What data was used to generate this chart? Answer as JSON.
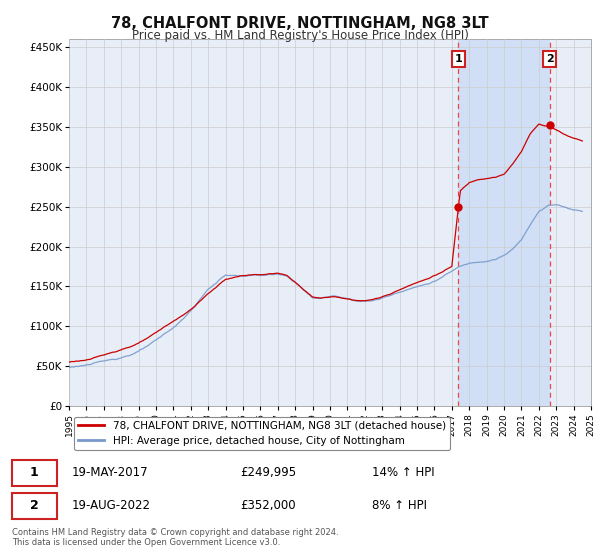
{
  "title": "78, CHALFONT DRIVE, NOTTINGHAM, NG8 3LT",
  "subtitle": "Price paid vs. HM Land Registry's House Price Index (HPI)",
  "ylim": [
    0,
    460000
  ],
  "yticks": [
    0,
    50000,
    100000,
    150000,
    200000,
    250000,
    300000,
    350000,
    400000,
    450000
  ],
  "ytick_labels": [
    "£0",
    "£50K",
    "£100K",
    "£150K",
    "£200K",
    "£250K",
    "£300K",
    "£350K",
    "£400K",
    "£450K"
  ],
  "bg_color": "#ffffff",
  "plot_bg_color": "#e8eef8",
  "shade_color": "#d0dff5",
  "grid_color": "#cccccc",
  "hpi_color": "#7799cc",
  "price_color": "#cc0000",
  "vline_color": "#ee4444",
  "annotation_box_color": "#cc2222",
  "legend_label_price": "78, CHALFONT DRIVE, NOTTINGHAM, NG8 3LT (detached house)",
  "legend_label_hpi": "HPI: Average price, detached house, City of Nottingham",
  "sale1_date": "19-MAY-2017",
  "sale1_price": "£249,995",
  "sale1_hpi": "14% ↑ HPI",
  "sale2_date": "19-AUG-2022",
  "sale2_price": "£352,000",
  "sale2_hpi": "8% ↑ HPI",
  "footer": "Contains HM Land Registry data © Crown copyright and database right 2024.\nThis data is licensed under the Open Government Licence v3.0.",
  "sale1_year": 2017.38,
  "sale2_year": 2022.63,
  "sale1_value": 249995,
  "sale2_value": 352000,
  "xmin": 1995,
  "xmax": 2025
}
